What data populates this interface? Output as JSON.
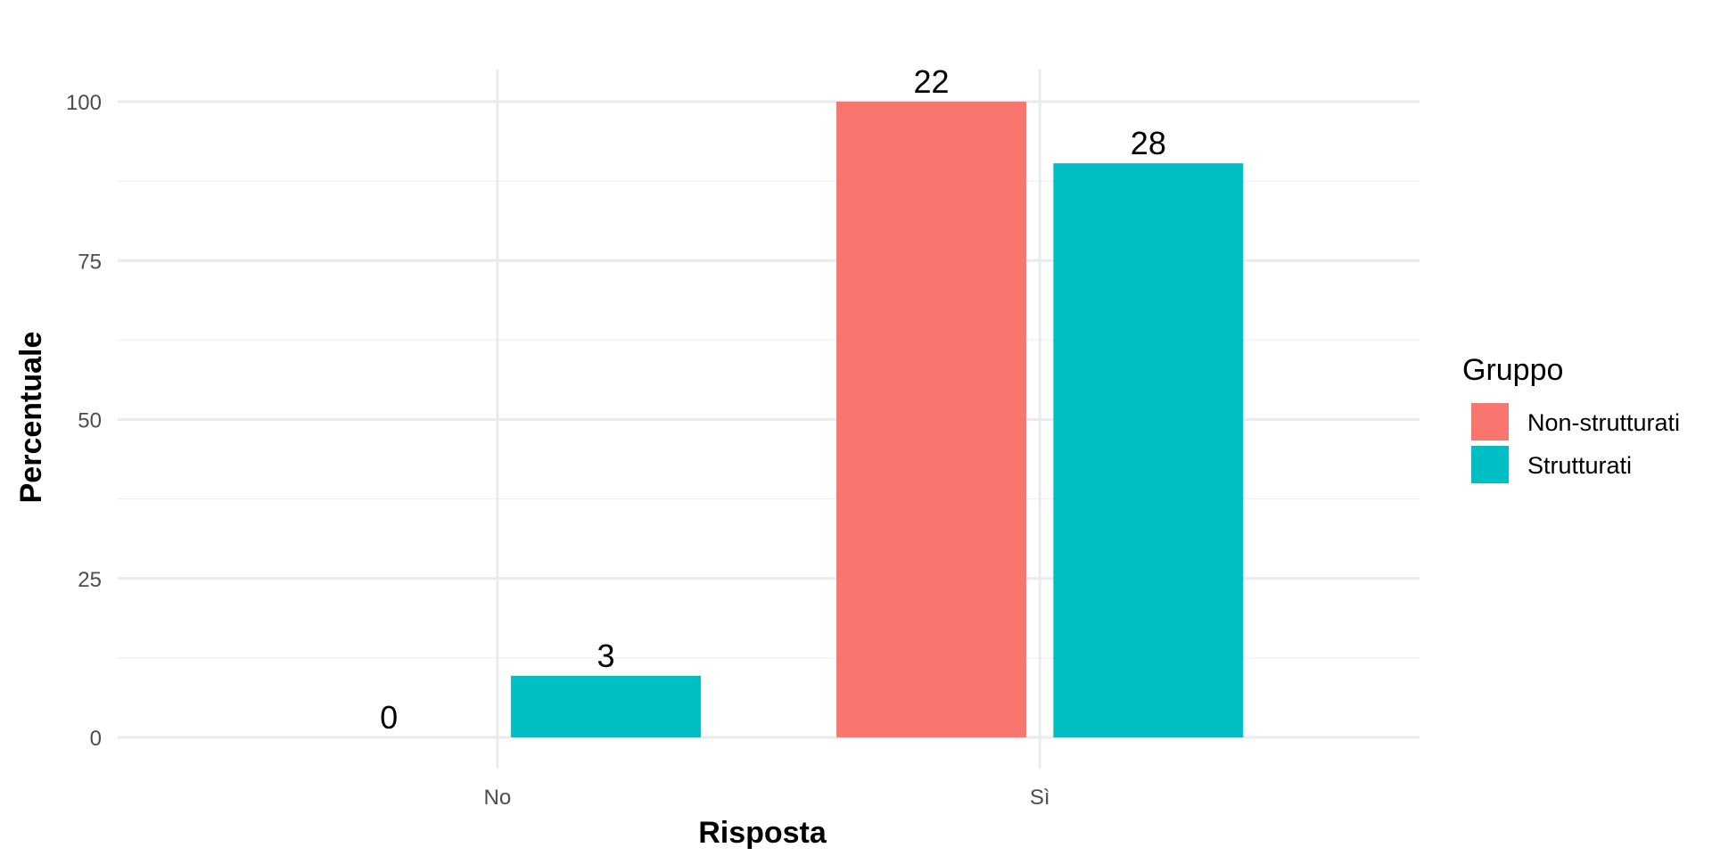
{
  "chart_data": {
    "type": "bar",
    "categories": [
      "No",
      "Sì"
    ],
    "xlabel": "Risposta",
    "ylabel": "Percentuale",
    "ylim": [
      0,
      100
    ],
    "yticks": [
      0,
      25,
      50,
      75,
      100
    ],
    "grid": true,
    "legend": {
      "title": "Gruppo",
      "placement": "right"
    },
    "series": [
      {
        "name": "Non-strutturati",
        "color": "#F8766D",
        "values": [
          0,
          100
        ],
        "labels": [
          "0",
          "22"
        ]
      },
      {
        "name": "Strutturati",
        "color": "#00BFC4",
        "values": [
          9.7,
          90.3
        ],
        "labels": [
          "3",
          "28"
        ]
      }
    ]
  }
}
